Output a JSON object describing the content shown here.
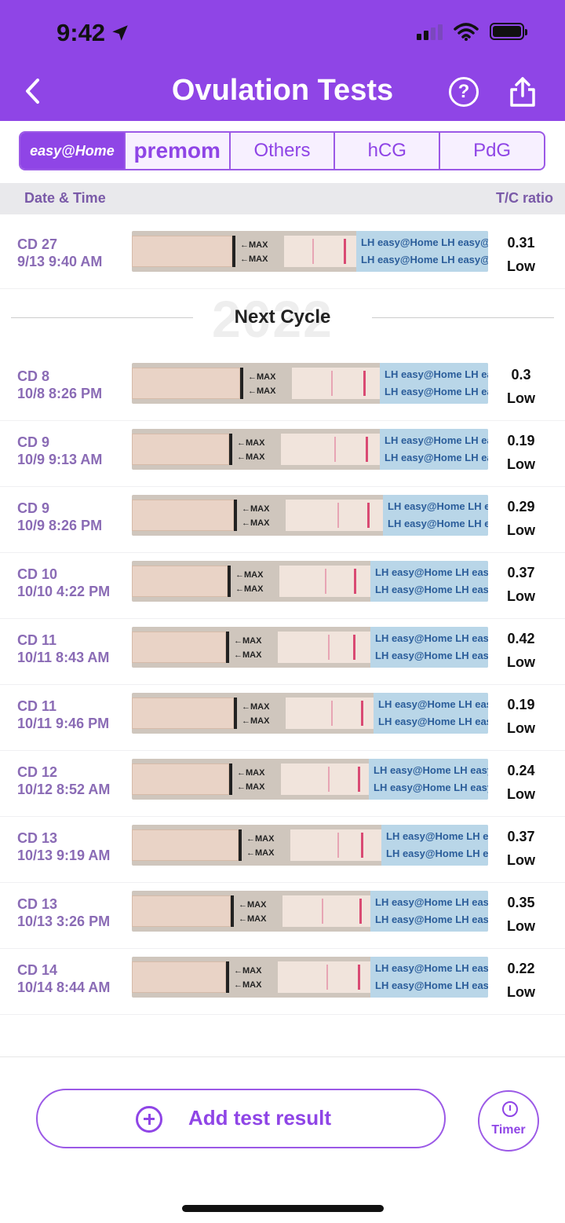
{
  "status_bar": {
    "time": "9:42"
  },
  "header": {
    "title": "Ovulation Tests",
    "help_symbol": "?"
  },
  "brand_tabs": [
    {
      "label": "easy@Home",
      "active": true
    },
    {
      "label": "premom",
      "active": false
    },
    {
      "label": "Others",
      "active": false
    },
    {
      "label": "hCG",
      "active": false
    },
    {
      "label": "PdG",
      "active": false
    }
  ],
  "columns": {
    "left": "Date & Time",
    "right": "T/C ratio"
  },
  "previous_cycle": [
    {
      "cd": "CD 27",
      "datetime": "9/13 9:40 AM",
      "ratio": "0.31",
      "level": "Low"
    }
  ],
  "divider": {
    "label": "Next Cycle",
    "watermark": "2022"
  },
  "next_cycle": [
    {
      "cd": "CD 8",
      "datetime": "10/8 8:26 PM",
      "ratio": "0.3",
      "level": "Low"
    },
    {
      "cd": "CD 9",
      "datetime": "10/9 9:13 AM",
      "ratio": "0.19",
      "level": "Low"
    },
    {
      "cd": "CD 9",
      "datetime": "10/9 8:26 PM",
      "ratio": "0.29",
      "level": "Low"
    },
    {
      "cd": "CD 10",
      "datetime": "10/10 4:22 PM",
      "ratio": "0.37",
      "level": "Low"
    },
    {
      "cd": "CD 11",
      "datetime": "10/11 8:43 AM",
      "ratio": "0.42",
      "level": "Low"
    },
    {
      "cd": "CD 11",
      "datetime": "10/11 9:46 PM",
      "ratio": "0.19",
      "level": "Low"
    },
    {
      "cd": "CD 12",
      "datetime": "10/12 8:52 AM",
      "ratio": "0.24",
      "level": "Low"
    },
    {
      "cd": "CD 13",
      "datetime": "10/13 9:19 AM",
      "ratio": "0.37",
      "level": "Low"
    },
    {
      "cd": "CD 13",
      "datetime": "10/13 3:26 PM",
      "ratio": "0.35",
      "level": "Low"
    },
    {
      "cd": "CD 14",
      "datetime": "10/14 8:44 AM",
      "ratio": "0.22",
      "level": "Low"
    }
  ],
  "strip_text": {
    "max_label": "←MAX",
    "tail_text": "LH easy@Home LH easy@Home LH"
  },
  "actions": {
    "add_label": "Add test result",
    "timer_label": "Timer"
  },
  "colors": {
    "accent": "#8f45e6",
    "label_purple": "#8a6bb5",
    "strip_blue": "#b9d6e8",
    "control_line": "#d94a73"
  }
}
